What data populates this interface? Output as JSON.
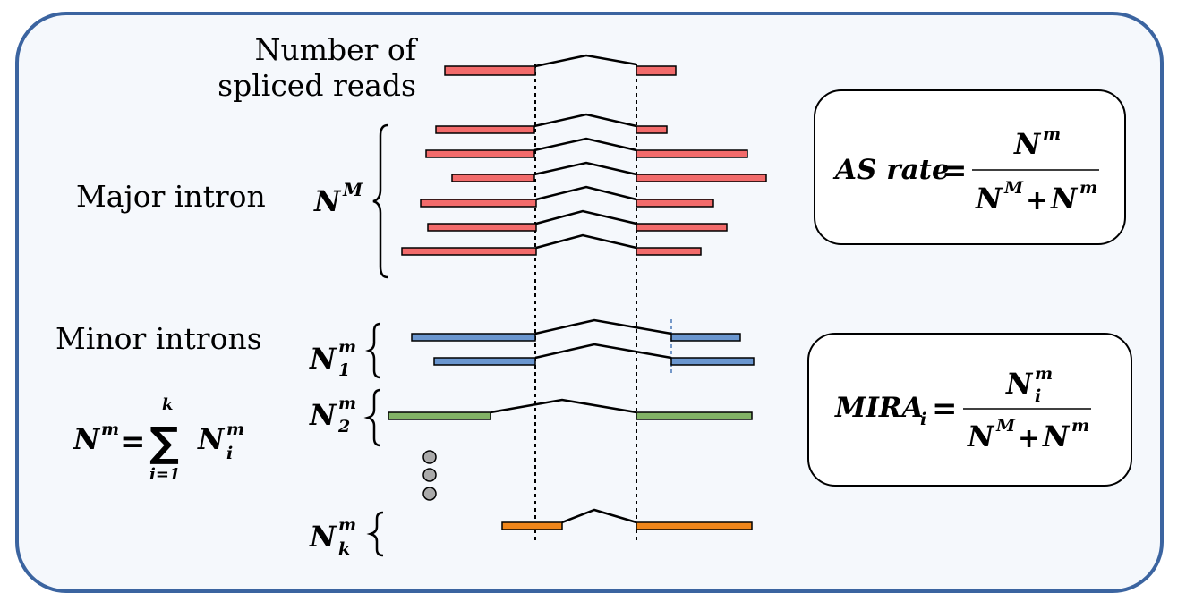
{
  "labels": {
    "spliced_reads_line1": "Number of",
    "spliced_reads_line2": "spliced reads",
    "major_intron": "Major intron",
    "minor_introns": "Minor introns"
  },
  "symbols": {
    "N": "N",
    "sup_M": "M",
    "sup_m": "m",
    "sub_1": "1",
    "sub_2": "2",
    "sub_k": "k",
    "sub_i": "i",
    "sum_sign": "∑",
    "sum_upper": "k",
    "sum_lower": "i=1",
    "equals": "=",
    "plus": "+"
  },
  "formulas": {
    "as_rate_lhs": "AS rate",
    "mira_lhs": "MIRA"
  },
  "colors": {
    "frame": "#3b64a0",
    "background": "#f5f8fc",
    "major_read": "#f26b6b",
    "minor1_read": "#6a96cf",
    "minor2_read": "#82b366",
    "minork_read": "#f0861a",
    "dots": "#aaaaaa"
  }
}
